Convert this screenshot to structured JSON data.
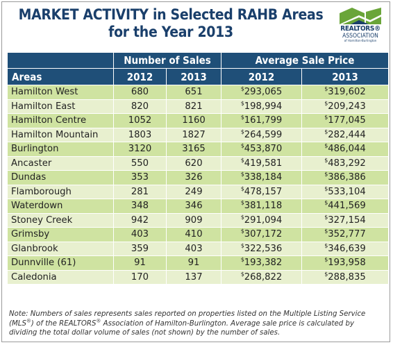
{
  "title": {
    "line1": "MARKET ACTIVITY in Selected RAHB Areas",
    "line2": "for the Year 2013"
  },
  "logo": {
    "line1": "REALTORS®",
    "line2": "ASSOCIATION",
    "line3": "of Hamilton-Burlington",
    "colors": {
      "green": "#6aa539",
      "blue": "#1a3f6b"
    }
  },
  "colors": {
    "header_bg": "#1f4f78",
    "row_dark": "#cfe3a1",
    "row_light": "#e8f0cf",
    "title": "#1a3f6b"
  },
  "table": {
    "group_headers": {
      "sales": "Number of Sales",
      "price": "Average Sale Price"
    },
    "col_headers": {
      "areas": "Areas",
      "sales_2012": "2012",
      "sales_2013": "2013",
      "price_2012": "2012",
      "price_2013": "2013"
    }
  },
  "chart_data": {
    "type": "table",
    "title": "MARKET ACTIVITY in Selected RAHB Areas for the Year 2013",
    "columns": [
      "Areas",
      "Number of Sales 2012",
      "Number of Sales 2013",
      "Average Sale Price 2012",
      "Average Sale Price 2013"
    ],
    "currency_symbol": "$",
    "rows": [
      {
        "area": "Hamilton West",
        "sales_2012": "680",
        "sales_2013": "651",
        "price_2012": "293,065",
        "price_2013": "319,602"
      },
      {
        "area": "Hamilton East",
        "sales_2012": "820",
        "sales_2013": "821",
        "price_2012": "198,994",
        "price_2013": "209,243"
      },
      {
        "area": "Hamilton Centre",
        "sales_2012": "1052",
        "sales_2013": "1160",
        "price_2012": "161,799",
        "price_2013": "177,045"
      },
      {
        "area": "Hamilton Mountain",
        "sales_2012": "1803",
        "sales_2013": "1827",
        "price_2012": "264,599",
        "price_2013": "282,444"
      },
      {
        "area": "Burlington",
        "sales_2012": "3120",
        "sales_2013": "3165",
        "price_2012": "453,870",
        "price_2013": "486,044"
      },
      {
        "area": "Ancaster",
        "sales_2012": "550",
        "sales_2013": "620",
        "price_2012": "419,581",
        "price_2013": "483,292"
      },
      {
        "area": "Dundas",
        "sales_2012": "353",
        "sales_2013": "326",
        "price_2012": "338,184",
        "price_2013": "386,386"
      },
      {
        "area": "Flamborough",
        "sales_2012": "281",
        "sales_2013": "249",
        "price_2012": "478,157",
        "price_2013": "533,104"
      },
      {
        "area": "Waterdown",
        "sales_2012": "348",
        "sales_2013": "346",
        "price_2012": "381,118",
        "price_2013": "441,569"
      },
      {
        "area": "Stoney Creek",
        "sales_2012": "942",
        "sales_2013": "909",
        "price_2012": "291,094",
        "price_2013": "327,154"
      },
      {
        "area": "Grimsby",
        "sales_2012": "403",
        "sales_2013": "410",
        "price_2012": "307,172",
        "price_2013": "352,777"
      },
      {
        "area": "Glanbrook",
        "sales_2012": "359",
        "sales_2013": "403",
        "price_2012": "322,536",
        "price_2013": "346,639"
      },
      {
        "area": "Dunnville (61)",
        "sales_2012": "91",
        "sales_2013": "91",
        "price_2012": "193,382",
        "price_2013": "193,958"
      },
      {
        "area": "Caledonia",
        "sales_2012": "170",
        "sales_2013": "137",
        "price_2012": "268,822",
        "price_2013": "288,835"
      }
    ]
  },
  "note": {
    "part1": "Note:  Numbers of sales represents sales reported on properties listed on the Multiple Listing Service (MLS",
    "reg1": "®",
    "part2": ") of the REALTORS",
    "reg2": "®",
    "part3": " Association of Hamilton-Burlington.  Average sale price is calculated by dividing the total dollar volume of sales (not shown) by the number of sales."
  }
}
